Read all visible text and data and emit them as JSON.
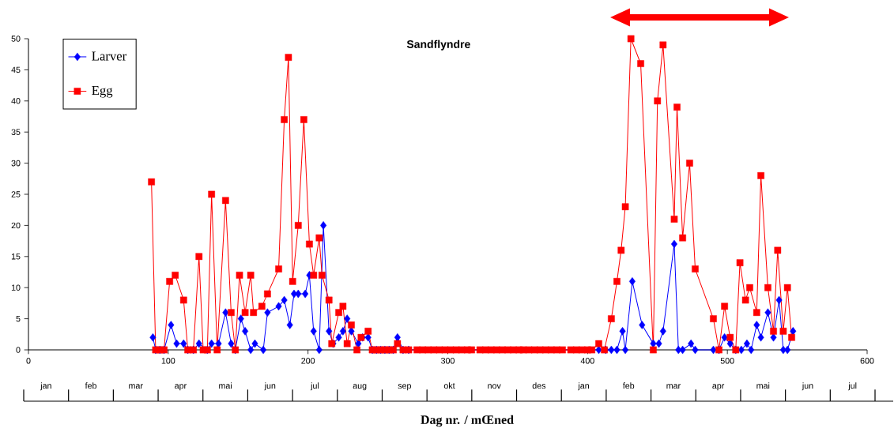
{
  "chart_data": [
    {
      "type": "line",
      "title": "Sandflyndre",
      "xlabel": "Dag nr. / mŒned",
      "xlim": [
        0,
        600
      ],
      "xticks": [
        0,
        100,
        200,
        300,
        400,
        500,
        600
      ],
      "ylim": [
        0,
        50
      ],
      "yticks": [
        0,
        5,
        10,
        15,
        20,
        25,
        30,
        35,
        40,
        45,
        50
      ],
      "legend": "top left",
      "series": [
        {
          "name": "Larver",
          "color": "#0000ff",
          "marker": "diamond",
          "x": [
            89,
            91,
            94,
            97,
            102,
            106,
            111,
            114,
            118,
            122,
            128,
            131,
            136,
            141,
            145,
            148,
            152,
            155,
            159,
            162,
            168,
            171,
            179,
            183,
            187,
            190,
            193,
            198,
            201,
            204,
            208,
            211,
            215,
            218,
            222,
            225,
            228,
            231,
            236,
            239,
            243,
            246,
            249,
            252,
            255,
            258,
            261,
            264,
            268,
            272,
            408,
            413,
            417,
            421,
            425,
            427,
            432,
            439,
            447,
            451,
            454,
            462,
            465,
            468,
            474,
            477,
            490,
            494,
            498,
            502,
            506,
            510,
            514,
            517,
            521,
            524,
            529,
            533,
            537,
            540,
            543,
            547
          ],
          "values": [
            2,
            0,
            0,
            0,
            4,
            1,
            1,
            0,
            0,
            1,
            0,
            1,
            1,
            6,
            1,
            0,
            5,
            3,
            0,
            1,
            0,
            6,
            7,
            8,
            4,
            9,
            9,
            9,
            12,
            3,
            0,
            20,
            3,
            1,
            2,
            3,
            5,
            3,
            1,
            2,
            2,
            0,
            0,
            0,
            0,
            0,
            0,
            2,
            0,
            0,
            0,
            0,
            0,
            0,
            3,
            0,
            11,
            4,
            1,
            1,
            3,
            17,
            0,
            0,
            1,
            0,
            0,
            0,
            2,
            1,
            0,
            0,
            1,
            0,
            4,
            2,
            6,
            2,
            8,
            0,
            0,
            3
          ]
        },
        {
          "name": "Egg",
          "color": "#ff0000",
          "marker": "square",
          "x": [
            88,
            91,
            94,
            97,
            101,
            105,
            111,
            114,
            118,
            122,
            125,
            128,
            131,
            135,
            141,
            145,
            148,
            151,
            155,
            159,
            161,
            167,
            171,
            179,
            183,
            186,
            189,
            193,
            197,
            201,
            204,
            208,
            210,
            215,
            217,
            222,
            225,
            228,
            231,
            235,
            238,
            243,
            246,
            249,
            252,
            255,
            258,
            261,
            264,
            268,
            272,
            278,
            282,
            286,
            290,
            294,
            298,
            302,
            306,
            310,
            314,
            317,
            323,
            327,
            331,
            335,
            339,
            343,
            347,
            351,
            354,
            358,
            362,
            366,
            370,
            374,
            378,
            382,
            388,
            392,
            396,
            400,
            403,
            408,
            412,
            417,
            421,
            424,
            427,
            431,
            438,
            447,
            450,
            454,
            462,
            464,
            468,
            473,
            477,
            490,
            494,
            498,
            502,
            506,
            509,
            513,
            516,
            521,
            524,
            529,
            533,
            536,
            540,
            543,
            546
          ],
          "values": [
            27,
            0,
            0,
            0,
            11,
            12,
            8,
            0,
            0,
            15,
            0,
            0,
            25,
            0,
            24,
            6,
            0,
            12,
            6,
            12,
            6,
            7,
            9,
            13,
            37,
            47,
            11,
            20,
            37,
            17,
            12,
            18,
            12,
            8,
            1,
            6,
            7,
            1,
            4,
            0,
            2,
            3,
            0,
            0,
            0,
            0,
            0,
            0,
            1,
            0,
            0,
            0,
            0,
            0,
            0,
            0,
            0,
            0,
            0,
            0,
            0,
            0,
            0,
            0,
            0,
            0,
            0,
            0,
            0,
            0,
            0,
            0,
            0,
            0,
            0,
            0,
            0,
            0,
            0,
            0,
            0,
            0,
            0,
            1,
            0,
            5,
            11,
            16,
            23,
            50,
            46,
            0,
            40,
            49,
            21,
            39,
            18,
            30,
            13,
            5,
            0,
            7,
            2,
            0,
            14,
            8,
            10,
            6,
            28,
            10,
            3,
            16,
            3,
            10,
            2
          ]
        }
      ]
    },
    {
      "type": "other",
      "categories": [
        "jan",
        "feb",
        "mar",
        "apr",
        "mai",
        "jun",
        "jul",
        "aug",
        "sep",
        "okt",
        "nov",
        "des",
        "jan",
        "feb",
        "mar",
        "apr",
        "mai",
        "jun",
        "jul"
      ]
    }
  ]
}
